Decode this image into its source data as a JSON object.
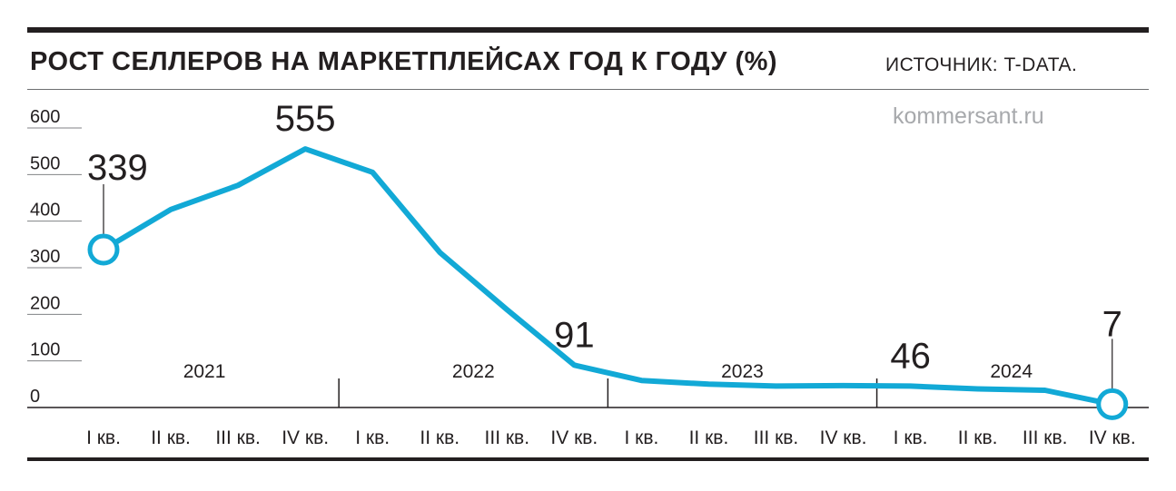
{
  "header": {
    "title": "РОСТ СЕЛЛЕРОВ НА МАРКЕТПЛЕЙСАХ ГОД К ГОДУ (%)",
    "source": "ИСТОЧНИК: T-DATA.",
    "brand": "kommersant.ru"
  },
  "colors": {
    "line": "#12a9d6",
    "ink": "#231f20",
    "brand": "#a7a9ac"
  },
  "chart_data": {
    "type": "line",
    "title": "РОСТ СЕЛЛЕРОВ НА МАРКЕТПЛЕЙСАХ ГОД К ГОДУ (%)",
    "categories": [
      "I кв.",
      "II кв.",
      "III кв.",
      "IV кв.",
      "I кв.",
      "II кв.",
      "III кв.",
      "IV кв.",
      "I кв.",
      "II кв.",
      "III кв.",
      "IV кв.",
      "I кв.",
      "II кв.",
      "III кв.",
      "IV кв."
    ],
    "years": [
      "2021",
      "2022",
      "2023",
      "2024"
    ],
    "series": [
      {
        "values": [
          339,
          425,
          477,
          555,
          505,
          333,
          210,
          91,
          58,
          50,
          46,
          47,
          46,
          40,
          37,
          7
        ]
      }
    ],
    "yticks": [
      600,
      500,
      400,
      300,
      200,
      100,
      0
    ],
    "ylim": [
      0,
      600
    ],
    "labeled_points": [
      0,
      3,
      7,
      12,
      15
    ],
    "marked_points": [
      0,
      15
    ],
    "grid": false,
    "legend": "none"
  }
}
